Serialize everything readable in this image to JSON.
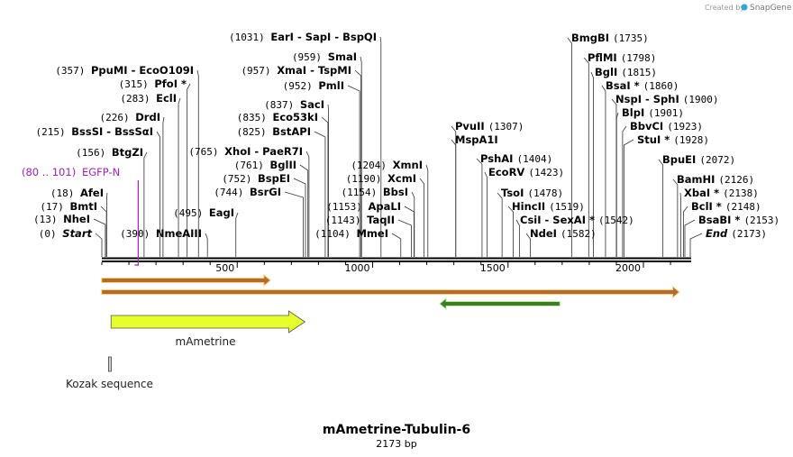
{
  "map": {
    "title": "mAmetrine-Tubulin-6",
    "subtitle": "2173 bp",
    "length": 2173,
    "credit": {
      "prefix": "Created by",
      "brand": "SnapGene"
    },
    "ticks": [
      {
        "pos": 500,
        "label": "500"
      },
      {
        "pos": 1000,
        "label": "1000"
      },
      {
        "pos": 1500,
        "label": "1500"
      },
      {
        "pos": 2000,
        "label": "2000"
      }
    ],
    "primer": {
      "range": "(80 .. 101)",
      "name": "EGFP-N",
      "start": 80,
      "end": 101,
      "color": "#a020c0"
    },
    "features": {
      "mametrine": {
        "name": "mAmetrine",
        "start": 34,
        "end": 750,
        "color": "#e4ff2a"
      },
      "kozak": {
        "name": "Kozak sequence",
        "start": 28,
        "end": 34
      },
      "orf1": {
        "start": 1,
        "end": 620,
        "color": "#b36a2c"
      },
      "orf2": {
        "start": 1,
        "end": 2130,
        "color": "#b36a2c"
      },
      "orf3": {
        "start": 1250,
        "end": 1690,
        "color": "#3e7a2a"
      }
    },
    "sites_left": [
      {
        "id": "start",
        "segs": [
          {
            "t": "(0)",
            "k": "pos"
          },
          {
            "t": "Start",
            "k": "eit"
          }
        ],
        "pos": 0
      },
      {
        "id": "nhei",
        "segs": [
          {
            "t": "(13)",
            "k": "pos"
          },
          {
            "t": "NheI",
            "k": "ename"
          }
        ],
        "pos": 13
      },
      {
        "id": "bmti",
        "segs": [
          {
            "t": "(17)",
            "k": "pos"
          },
          {
            "t": "BmtI",
            "k": "ename"
          }
        ],
        "pos": 17
      },
      {
        "id": "afei",
        "segs": [
          {
            "t": "(18)",
            "k": "pos"
          },
          {
            "t": "AfeI",
            "k": "ename"
          }
        ],
        "pos": 18
      },
      {
        "id": "btgzi",
        "segs": [
          {
            "t": "(156)",
            "k": "pos"
          },
          {
            "t": "BtgZI",
            "k": "ename"
          }
        ],
        "pos": 156
      },
      {
        "id": "bsssi",
        "segs": [
          {
            "t": "(215)",
            "k": "pos"
          },
          {
            "t": "BssSI",
            "k": "ename"
          },
          {
            "t": "- BssSαI",
            "k": "ename"
          }
        ],
        "pos": 215
      },
      {
        "id": "drdi",
        "segs": [
          {
            "t": "(226)",
            "k": "pos"
          },
          {
            "t": "DrdI",
            "k": "ename"
          }
        ],
        "pos": 226
      },
      {
        "id": "ecli",
        "segs": [
          {
            "t": "(283)",
            "k": "pos"
          },
          {
            "t": "EclI",
            "k": "ename"
          }
        ],
        "pos": 283
      },
      {
        "id": "pfoi",
        "segs": [
          {
            "t": "(315)",
            "k": "pos"
          },
          {
            "t": "PfoI *",
            "k": "ename"
          }
        ],
        "pos": 315
      },
      {
        "id": "ppumi",
        "segs": [
          {
            "t": "(357)",
            "k": "pos"
          },
          {
            "t": "PpuMI",
            "k": "ename"
          },
          {
            "t": "- EcoO109I",
            "k": "ename"
          }
        ],
        "pos": 357
      }
    ],
    "sites_mid": [
      {
        "id": "nmeaiii",
        "segs": [
          {
            "t": "(390)",
            "k": "pos"
          },
          {
            "t": "NmeAIII",
            "k": "ename"
          }
        ],
        "pos": 390
      },
      {
        "id": "eagi",
        "segs": [
          {
            "t": "(495)",
            "k": "pos"
          },
          {
            "t": "EagI",
            "k": "ename"
          }
        ],
        "pos": 495
      },
      {
        "id": "bsrgi",
        "segs": [
          {
            "t": "(744)",
            "k": "pos"
          },
          {
            "t": "BsrGI",
            "k": "ename"
          }
        ],
        "pos": 744
      },
      {
        "id": "bspei",
        "segs": [
          {
            "t": "(752)",
            "k": "pos"
          },
          {
            "t": "BspEI",
            "k": "ename"
          }
        ],
        "pos": 752
      },
      {
        "id": "bglii",
        "segs": [
          {
            "t": "(761)",
            "k": "pos"
          },
          {
            "t": "BglII",
            "k": "ename"
          }
        ],
        "pos": 761
      },
      {
        "id": "xhoi",
        "segs": [
          {
            "t": "(765)",
            "k": "pos"
          },
          {
            "t": "XhoI",
            "k": "ename"
          },
          {
            "t": "- PaeR7I",
            "k": "ename"
          }
        ],
        "pos": 765
      },
      {
        "id": "bstapi",
        "segs": [
          {
            "t": "(825)",
            "k": "pos"
          },
          {
            "t": "BstAPI",
            "k": "ename"
          }
        ],
        "pos": 825
      },
      {
        "id": "eco53ki",
        "segs": [
          {
            "t": "(835)",
            "k": "pos"
          },
          {
            "t": "Eco53kI",
            "k": "ename"
          }
        ],
        "pos": 835
      },
      {
        "id": "saci",
        "segs": [
          {
            "t": "(837)",
            "k": "pos"
          },
          {
            "t": "SacI",
            "k": "ename"
          }
        ],
        "pos": 837
      },
      {
        "id": "pmli",
        "segs": [
          {
            "t": "(952)",
            "k": "pos"
          },
          {
            "t": "PmlI",
            "k": "ename"
          }
        ],
        "pos": 952
      },
      {
        "id": "xmai",
        "segs": [
          {
            "t": "(957)",
            "k": "pos"
          },
          {
            "t": "XmaI",
            "k": "ename"
          },
          {
            "t": "- TspMI",
            "k": "ename"
          }
        ],
        "pos": 957
      },
      {
        "id": "smai",
        "segs": [
          {
            "t": "(959)",
            "k": "pos"
          },
          {
            "t": "SmaI",
            "k": "ename"
          }
        ],
        "pos": 959
      },
      {
        "id": "eari",
        "segs": [
          {
            "t": "(1031)",
            "k": "pos"
          },
          {
            "t": "EarI",
            "k": "ename"
          },
          {
            "t": "- SapI",
            "k": "ename"
          },
          {
            "t": "- BspQI",
            "k": "ename"
          }
        ],
        "pos": 1031
      }
    ],
    "sites_center": [
      {
        "id": "mmei",
        "segs": [
          {
            "t": "(1104)",
            "k": "pos"
          },
          {
            "t": "MmeI",
            "k": "ename"
          }
        ],
        "pos": 1104
      },
      {
        "id": "taqii",
        "segs": [
          {
            "t": "(1143)",
            "k": "pos"
          },
          {
            "t": "TaqII",
            "k": "ename"
          }
        ],
        "pos": 1143
      },
      {
        "id": "apali",
        "segs": [
          {
            "t": "(1153)",
            "k": "pos"
          },
          {
            "t": "ApaLI",
            "k": "ename"
          }
        ],
        "pos": 1153
      },
      {
        "id": "bbsi",
        "segs": [
          {
            "t": "(1154)",
            "k": "pos"
          },
          {
            "t": "BbsI",
            "k": "ename"
          }
        ],
        "pos": 1154
      },
      {
        "id": "xcmi",
        "segs": [
          {
            "t": "(1190)",
            "k": "pos"
          },
          {
            "t": "XcmI",
            "k": "ename"
          }
        ],
        "pos": 1190
      },
      {
        "id": "xmni",
        "segs": [
          {
            "t": "(1204)",
            "k": "pos"
          },
          {
            "t": "XmnI",
            "k": "ename"
          }
        ],
        "pos": 1204
      }
    ],
    "sites_right": [
      {
        "id": "pvuii",
        "segs": [
          {
            "t": "PvuII",
            "k": "ename"
          },
          {
            "t": "(1307)",
            "k": "pos"
          }
        ],
        "pos": 1307
      },
      {
        "id": "mspa1i",
        "segs": [
          {
            "t": "MspA1I",
            "k": "ename"
          }
        ],
        "pos": 1307
      },
      {
        "id": "pshai",
        "segs": [
          {
            "t": "PshAI",
            "k": "ename"
          },
          {
            "t": "(1404)",
            "k": "pos"
          }
        ],
        "pos": 1404
      },
      {
        "id": "ecorv",
        "segs": [
          {
            "t": "EcoRV",
            "k": "ename"
          },
          {
            "t": "(1423)",
            "k": "pos"
          }
        ],
        "pos": 1423
      },
      {
        "id": "tsoi",
        "segs": [
          {
            "t": "TsoI",
            "k": "ename"
          },
          {
            "t": "(1478)",
            "k": "pos"
          }
        ],
        "pos": 1478
      },
      {
        "id": "hincii",
        "segs": [
          {
            "t": "HincII",
            "k": "ename"
          },
          {
            "t": "(1519)",
            "k": "pos"
          }
        ],
        "pos": 1519
      },
      {
        "id": "csii",
        "segs": [
          {
            "t": "CsiI",
            "k": "ename"
          },
          {
            "t": "- SexAI *",
            "k": "ename"
          },
          {
            "t": "(1542)",
            "k": "pos"
          }
        ],
        "pos": 1542
      },
      {
        "id": "ndei",
        "segs": [
          {
            "t": "NdeI",
            "k": "ename"
          },
          {
            "t": "(1582)",
            "k": "pos"
          }
        ],
        "pos": 1582
      },
      {
        "id": "bmgbi",
        "segs": [
          {
            "t": "BmgBI",
            "k": "ename"
          },
          {
            "t": "(1735)",
            "k": "pos"
          }
        ],
        "pos": 1735
      },
      {
        "id": "pflmi",
        "segs": [
          {
            "t": "PflMI",
            "k": "ename"
          },
          {
            "t": "(1798)",
            "k": "pos"
          }
        ],
        "pos": 1798
      },
      {
        "id": "bgli",
        "segs": [
          {
            "t": "BglI",
            "k": "ename"
          },
          {
            "t": "(1815)",
            "k": "pos"
          }
        ],
        "pos": 1815
      },
      {
        "id": "bsai",
        "segs": [
          {
            "t": "BsaI *",
            "k": "ename"
          },
          {
            "t": "(1860)",
            "k": "pos"
          }
        ],
        "pos": 1860
      },
      {
        "id": "nspi",
        "segs": [
          {
            "t": "NspI",
            "k": "ename"
          },
          {
            "t": "- SphI",
            "k": "ename"
          },
          {
            "t": "(1900)",
            "k": "pos"
          }
        ],
        "pos": 1900
      },
      {
        "id": "blpi",
        "segs": [
          {
            "t": "BlpI",
            "k": "ename"
          },
          {
            "t": "(1901)",
            "k": "pos"
          }
        ],
        "pos": 1901
      },
      {
        "id": "bbvci",
        "segs": [
          {
            "t": "BbvCI",
            "k": "ename"
          },
          {
            "t": "(1923)",
            "k": "pos"
          }
        ],
        "pos": 1923
      },
      {
        "id": "stui",
        "segs": [
          {
            "t": "StuI *",
            "k": "ename"
          },
          {
            "t": "(1928)",
            "k": "pos"
          }
        ],
        "pos": 1928
      },
      {
        "id": "bpuei",
        "segs": [
          {
            "t": "BpuEI",
            "k": "ename"
          },
          {
            "t": "(2072)",
            "k": "pos"
          }
        ],
        "pos": 2072
      },
      {
        "id": "bamhi",
        "segs": [
          {
            "t": "BamHI",
            "k": "ename"
          },
          {
            "t": "(2126)",
            "k": "pos"
          }
        ],
        "pos": 2126
      },
      {
        "id": "xbai",
        "segs": [
          {
            "t": "XbaI *",
            "k": "ename"
          },
          {
            "t": "(2138)",
            "k": "pos"
          }
        ],
        "pos": 2138
      },
      {
        "id": "bcli",
        "segs": [
          {
            "t": "BclI *",
            "k": "ename"
          },
          {
            "t": "(2148)",
            "k": "pos"
          }
        ],
        "pos": 2148
      },
      {
        "id": "bsabi",
        "segs": [
          {
            "t": "BsaBI *",
            "k": "ename"
          },
          {
            "t": "(2153)",
            "k": "pos"
          }
        ],
        "pos": 2153
      },
      {
        "id": "end",
        "segs": [
          {
            "t": "End",
            "k": "eit"
          },
          {
            "t": "(2173)",
            "k": "pos"
          }
        ],
        "pos": 2173
      }
    ]
  }
}
